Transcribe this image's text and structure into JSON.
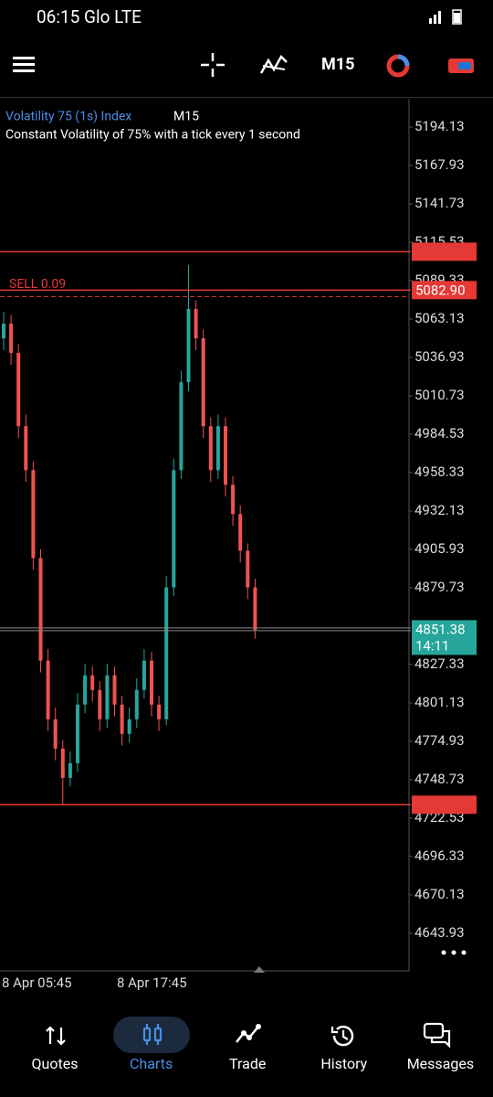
{
  "status_bar": {
    "time": "06:15 Glo LTE"
  },
  "toolbar": {
    "timeframe": "M15"
  },
  "chart_data": {
    "type": "candlestick",
    "symbol": "Volatility 75 (1s) Index",
    "timeframe": "M15",
    "description": "Constant Volatility of 75% with a tick every 1 second",
    "ylim": [
      4618.3,
      5213.5
    ],
    "yticks": [
      5194.13,
      5167.93,
      5141.73,
      5115.53,
      5089.33,
      5063.13,
      5036.93,
      5010.73,
      4984.53,
      4958.33,
      4932.13,
      4905.93,
      4879.73,
      4827.33,
      4801.13,
      4774.93,
      4748.73,
      4722.53,
      4696.33,
      4670.13,
      4643.93
    ],
    "x_labels": [
      "8 Apr 05:45",
      "8 Apr 17:45"
    ],
    "up_color": "#26a69a",
    "down_color": "#ef5350",
    "candles": [
      [
        5050,
        5068,
        5042,
        5060
      ],
      [
        5060,
        5066,
        5032,
        5040
      ],
      [
        5040,
        5046,
        4982,
        4990
      ],
      [
        4990,
        4998,
        4952,
        4960
      ],
      [
        4960,
        4966,
        4892,
        4900
      ],
      [
        4900,
        4906,
        4822,
        4830
      ],
      [
        4830,
        4838,
        4782,
        4790
      ],
      [
        4790,
        4798,
        4762,
        4770
      ],
      [
        4770,
        4776,
        4732,
        4750
      ],
      [
        4750,
        4768,
        4744,
        4760
      ],
      [
        4760,
        4808,
        4754,
        4800
      ],
      [
        4800,
        4828,
        4794,
        4820
      ],
      [
        4820,
        4826,
        4802,
        4810
      ],
      [
        4810,
        4816,
        4782,
        4790
      ],
      [
        4790,
        4828,
        4784,
        4820
      ],
      [
        4820,
        4826,
        4792,
        4800
      ],
      [
        4800,
        4806,
        4772,
        4780
      ],
      [
        4780,
        4798,
        4774,
        4790
      ],
      [
        4790,
        4818,
        4784,
        4810
      ],
      [
        4810,
        4838,
        4804,
        4830
      ],
      [
        4830,
        4836,
        4792,
        4800
      ],
      [
        4800,
        4806,
        4782,
        4790
      ],
      [
        4790,
        4888,
        4786,
        4880
      ],
      [
        4880,
        4968,
        4874,
        4960
      ],
      [
        4960,
        5028,
        4954,
        5020
      ],
      [
        5020,
        5100,
        5014,
        5070
      ],
      [
        5070,
        5076,
        5042,
        5050
      ],
      [
        5050,
        5056,
        4982,
        4990
      ],
      [
        4990,
        4996,
        4952,
        4960
      ],
      [
        4960,
        4998,
        4954,
        4990
      ],
      [
        4990,
        4996,
        4942,
        4950
      ],
      [
        4950,
        4956,
        4922,
        4930
      ],
      [
        4930,
        4936,
        4897,
        4905
      ],
      [
        4905,
        4910,
        4872,
        4880
      ],
      [
        4880,
        4886,
        4845,
        4851
      ]
    ],
    "levels": [
      {
        "value": 5109.09
      },
      {
        "value": 5082.9,
        "label": "5082.90"
      },
      {
        "value": 4731.67
      }
    ],
    "level_color": "#e53935",
    "sell_order": {
      "label": "SELL 0.09",
      "value": 5078.5
    },
    "current": {
      "value": 4851.38,
      "timer": "14:11"
    }
  },
  "bottom_nav": [
    "Quotes",
    "Charts",
    "Trade",
    "History",
    "Messages"
  ],
  "active_tab": 1
}
